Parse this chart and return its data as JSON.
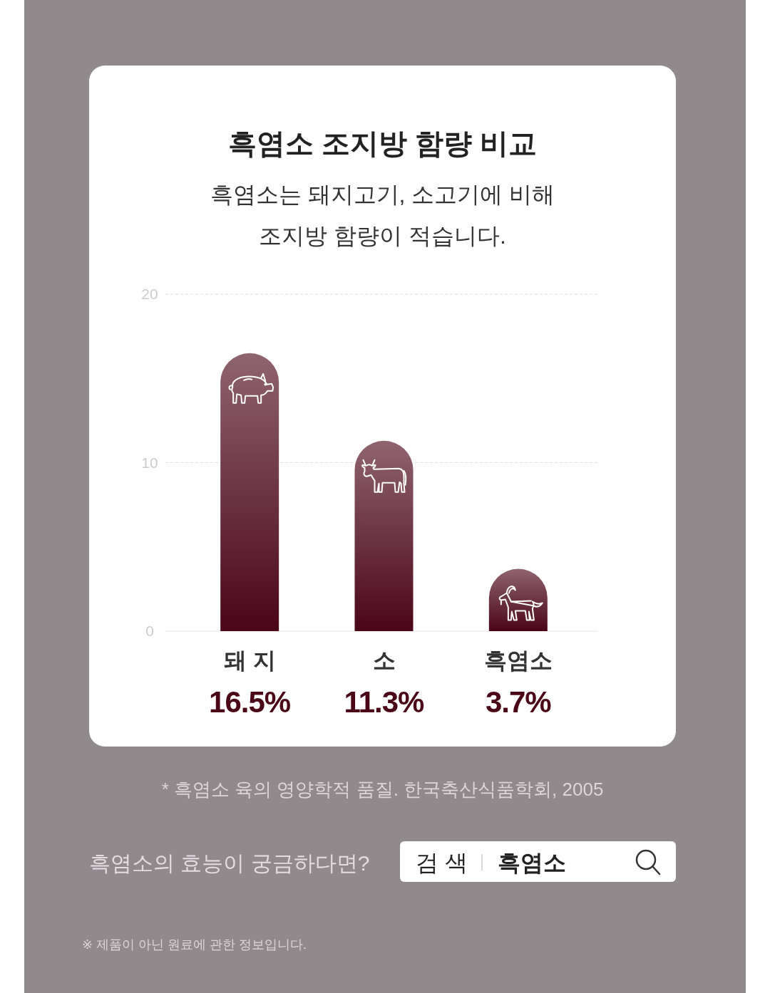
{
  "chart_data": {
    "type": "bar",
    "title": "흑염소 조지방 함량 비교",
    "subtitle": "흑염소는 돼지고기, 소고기에 비해\n조지방 함량이 적습니다.",
    "categories": [
      "돼 지",
      "소",
      "흑염소"
    ],
    "values": [
      16.5,
      11.3,
      3.7
    ],
    "color": "#4a0517",
    "value_labels": [
      "16.5%",
      "11.3%",
      "3.7%"
    ],
    "ylim": [
      0,
      20
    ],
    "yticks": [
      0,
      10,
      20
    ],
    "grid": "y",
    "annotations": [
      "* 흑염소 육의 영양학적 품질. 한국축산식품학회, 2005",
      "흑염소의 효능이 궁금하다면?",
      "검 색",
      "흑염소",
      "※ 제품이 아닌 원료에 관한 정보입니다."
    ]
  }
}
